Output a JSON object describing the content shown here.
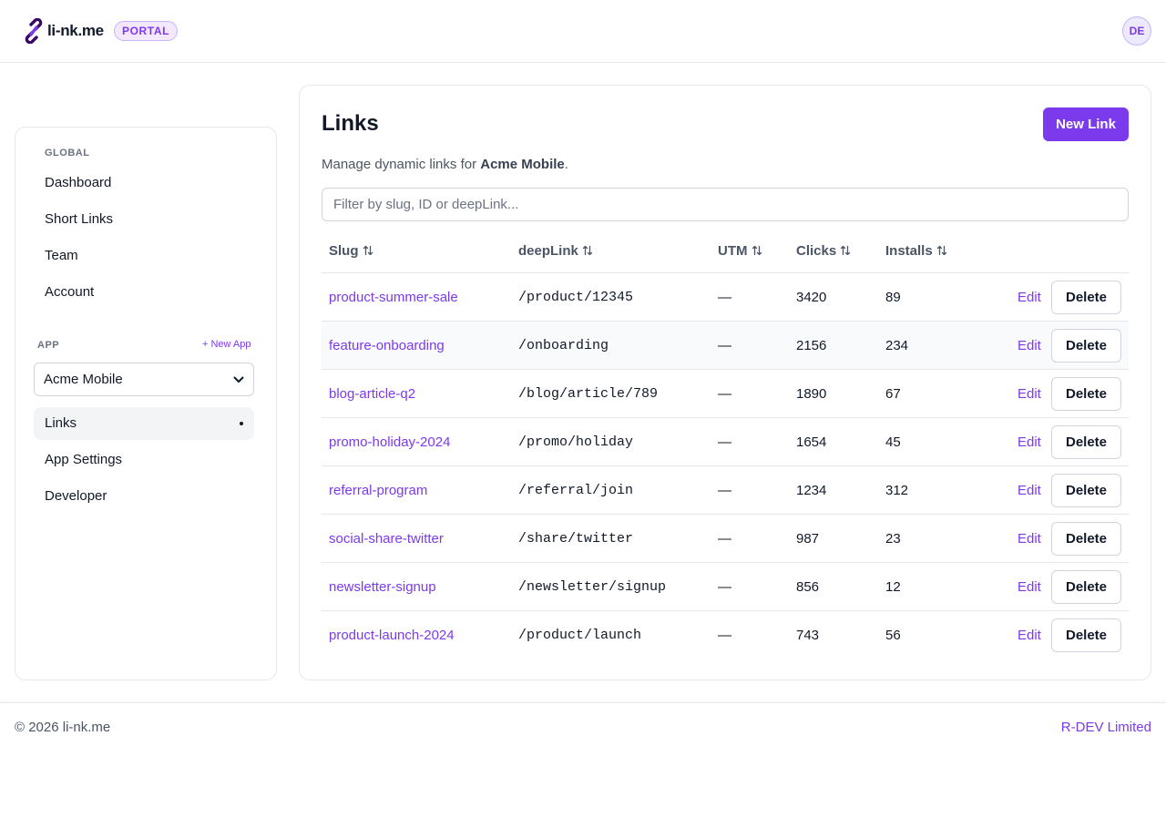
{
  "header": {
    "logo_text": "li-nk.me",
    "badge": "PORTAL",
    "avatar_initials": "DE",
    "accent_color": "#7c3aed"
  },
  "sidebar": {
    "global_label": "GLOBAL",
    "global_items": [
      {
        "label": "Dashboard"
      },
      {
        "label": "Short Links"
      },
      {
        "label": "Team"
      },
      {
        "label": "Account"
      }
    ],
    "app_label": "APP",
    "new_app_label": "+ New App",
    "selected_app": "Acme Mobile",
    "app_items": [
      {
        "label": "Links",
        "active": true
      },
      {
        "label": "App Settings"
      },
      {
        "label": "Developer"
      }
    ]
  },
  "main": {
    "title": "Links",
    "new_link_label": "New Link",
    "subtitle_prefix": "Manage dynamic links for ",
    "subtitle_app": "Acme Mobile",
    "subtitle_suffix": ".",
    "filter_placeholder": "Filter by slug, ID or deepLink...",
    "columns": [
      "Slug",
      "deepLink",
      "UTM",
      "Clicks",
      "Installs"
    ],
    "edit_label": "Edit",
    "delete_label": "Delete",
    "rows": [
      {
        "slug": "product-summer-sale",
        "deeplink": "/product/12345",
        "utm": "—",
        "clicks": "3420",
        "installs": "89"
      },
      {
        "slug": "feature-onboarding",
        "deeplink": "/onboarding",
        "utm": "—",
        "clicks": "2156",
        "installs": "234"
      },
      {
        "slug": "blog-article-q2",
        "deeplink": "/blog/article/789",
        "utm": "—",
        "clicks": "1890",
        "installs": "67"
      },
      {
        "slug": "promo-holiday-2024",
        "deeplink": "/promo/holiday",
        "utm": "—",
        "clicks": "1654",
        "installs": "45"
      },
      {
        "slug": "referral-program",
        "deeplink": "/referral/join",
        "utm": "—",
        "clicks": "1234",
        "installs": "312"
      },
      {
        "slug": "social-share-twitter",
        "deeplink": "/share/twitter",
        "utm": "—",
        "clicks": "987",
        "installs": "23"
      },
      {
        "slug": "newsletter-signup",
        "deeplink": "/newsletter/signup",
        "utm": "—",
        "clicks": "856",
        "installs": "12"
      },
      {
        "slug": "product-launch-2024",
        "deeplink": "/product/launch",
        "utm": "—",
        "clicks": "743",
        "installs": "56"
      }
    ]
  },
  "footer": {
    "copyright": "© 2026 li-nk.me",
    "company": "R-DEV Limited"
  }
}
